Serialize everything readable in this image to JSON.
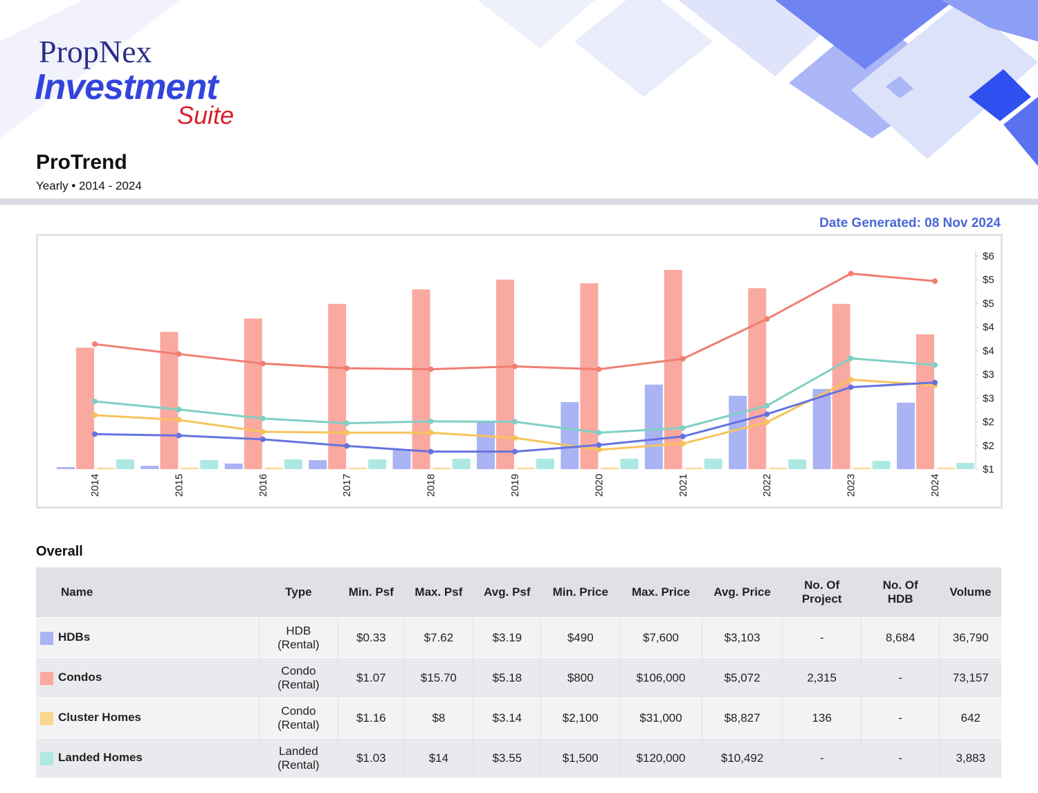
{
  "header": {
    "logo_top": "PropNex",
    "logo_middle": "Investment",
    "logo_bottom": "Suite",
    "title": "ProTrend",
    "subtitle": "Yearly • 2014 - 2024",
    "date_generated": "Date Generated: 08 Nov 2024"
  },
  "chart_data": {
    "type": "bar",
    "categories": [
      "2014",
      "2015",
      "2016",
      "2017",
      "2018",
      "2019",
      "2020",
      "2021",
      "2022",
      "2023",
      "2024"
    ],
    "ylim": [
      0,
      9000
    ],
    "y2lim": [
      1,
      5.5
    ],
    "y2ticks": [
      {
        "value": 1,
        "label": "$1"
      },
      {
        "value": 1.5,
        "label": "$2"
      },
      {
        "value": 2,
        "label": "$2"
      },
      {
        "value": 2.5,
        "label": "$3"
      },
      {
        "value": 3,
        "label": "$3"
      },
      {
        "value": 3.5,
        "label": "$4"
      },
      {
        "value": 4,
        "label": "$4"
      },
      {
        "value": 4.5,
        "label": "$5"
      },
      {
        "value": 5,
        "label": "$5"
      },
      {
        "value": 5.5,
        "label": "$6"
      }
    ],
    "series": [
      {
        "type": "bar",
        "color": "#aab4f4",
        "values": [
          85,
          140,
          230,
          370,
          800,
          1940,
          2760,
          3480,
          3020,
          3300,
          2740
        ]
      },
      {
        "type": "bar",
        "color": "#f9a99f",
        "values": [
          5000,
          5650,
          6200,
          6800,
          7400,
          7800,
          7650,
          8200,
          7450,
          6800,
          5550
        ]
      },
      {
        "type": "bar",
        "color": "#fbd68e",
        "values": [
          60,
          60,
          60,
          60,
          60,
          60,
          60,
          60,
          60,
          60,
          60
        ]
      },
      {
        "type": "bar",
        "color": "#aee8e2",
        "values": [
          400,
          370,
          400,
          400,
          430,
          430,
          430,
          430,
          400,
          340,
          260
        ]
      },
      {
        "type": "line",
        "axis": "y2",
        "color": "#f07e72",
        "values": [
          3.64,
          3.43,
          3.23,
          3.13,
          3.11,
          3.17,
          3.11,
          3.33,
          4.17,
          5.13,
          4.97
        ]
      },
      {
        "type": "line",
        "axis": "y2",
        "color": "#7fcfc4",
        "values": [
          2.43,
          2.26,
          2.07,
          1.97,
          2.01,
          2.0,
          1.77,
          1.87,
          2.34,
          3.34,
          3.2
        ]
      },
      {
        "type": "line",
        "axis": "y2",
        "color": "#f7c35b",
        "values": [
          2.14,
          2.04,
          1.79,
          1.77,
          1.77,
          1.66,
          1.41,
          1.54,
          1.99,
          2.89,
          2.77
        ]
      },
      {
        "type": "line",
        "axis": "y2",
        "color": "#6672e0",
        "values": [
          1.74,
          1.71,
          1.63,
          1.49,
          1.37,
          1.37,
          1.51,
          1.69,
          2.16,
          2.73,
          2.83
        ]
      }
    ]
  },
  "table": {
    "title": "Overall",
    "columns": [
      "Name",
      "Type",
      "Min. Psf",
      "Max. Psf",
      "Avg. Psf",
      "Min. Price",
      "Max. Price",
      "Avg. Price",
      "No. Of Project",
      "No. Of HDB",
      "Volume"
    ],
    "swatches": [
      "#aab4f4",
      "#f9a99f",
      "#fbd68e",
      "#aee8e2"
    ],
    "rows": [
      [
        "HDBs",
        "HDB (Rental)",
        "$0.33",
        "$7.62",
        "$3.19",
        "$490",
        "$7,600",
        "$3,103",
        "-",
        "8,684",
        "36,790"
      ],
      [
        "Condos",
        "Condo (Rental)",
        "$1.07",
        "$15.70",
        "$5.18",
        "$800",
        "$106,000",
        "$5,072",
        "2,315",
        "-",
        "73,157"
      ],
      [
        "Cluster Homes",
        "Condo (Rental)",
        "$1.16",
        "$8",
        "$3.14",
        "$2,100",
        "$31,000",
        "$8,827",
        "136",
        "-",
        "642"
      ],
      [
        "Landed Homes",
        "Landed (Rental)",
        "$1.03",
        "$14",
        "$3.55",
        "$1,500",
        "$120,000",
        "$10,492",
        "-",
        "-",
        "3,883"
      ]
    ]
  }
}
